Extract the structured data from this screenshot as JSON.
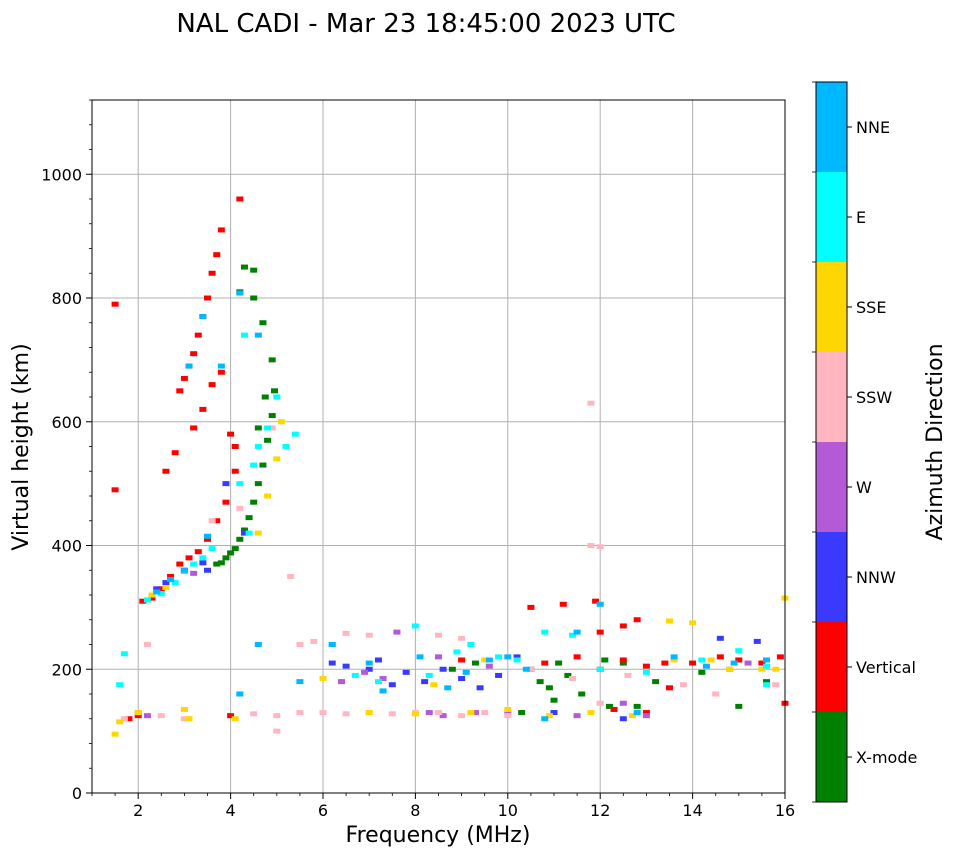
{
  "chart_data": {
    "type": "scatter",
    "title": "NAL CADI - Mar 23 18:45:00 2023 UTC",
    "xlabel": "Frequency (MHz)",
    "ylabel": "Virtual height (km)",
    "xlim": [
      1,
      16
    ],
    "ylim": [
      0,
      1120
    ],
    "xticks": [
      2,
      4,
      6,
      8,
      10,
      12,
      14,
      16
    ],
    "yticks": [
      0,
      200,
      400,
      600,
      800,
      1000
    ],
    "grid": true,
    "colorbar": {
      "label": "Azimuth Direction",
      "position": "right",
      "categories": [
        {
          "name": "X-mode",
          "color": "#008000"
        },
        {
          "name": "Vertical",
          "color": "#ff0000"
        },
        {
          "name": "NNW",
          "color": "#3a3aff"
        },
        {
          "name": "W",
          "color": "#b45ad6"
        },
        {
          "name": "SSW",
          "color": "#ffb6c1"
        },
        {
          "name": "SSE",
          "color": "#ffd700"
        },
        {
          "name": "E",
          "color": "#00ffff"
        },
        {
          "name": "NNE",
          "color": "#00b8ff"
        }
      ]
    },
    "series": [
      {
        "name": "X-mode",
        "points": [
          [
            3.7,
            370
          ],
          [
            3.8,
            372
          ],
          [
            3.9,
            380
          ],
          [
            4.0,
            388
          ],
          [
            4.1,
            395
          ],
          [
            4.2,
            410
          ],
          [
            4.3,
            425
          ],
          [
            4.4,
            445
          ],
          [
            4.5,
            470
          ],
          [
            4.6,
            500
          ],
          [
            4.7,
            530
          ],
          [
            4.8,
            570
          ],
          [
            4.9,
            610
          ],
          [
            4.95,
            650
          ],
          [
            4.9,
            700
          ],
          [
            4.7,
            760
          ],
          [
            4.5,
            800
          ],
          [
            4.2,
            810
          ],
          [
            4.5,
            845
          ],
          [
            4.3,
            850
          ],
          [
            4.6,
            590
          ],
          [
            4.75,
            640
          ],
          [
            10.5,
            200
          ],
          [
            10.7,
            180
          ],
          [
            10.9,
            170
          ],
          [
            11.1,
            210
          ],
          [
            11.3,
            190
          ],
          [
            11.6,
            160
          ],
          [
            12.2,
            140
          ],
          [
            12.5,
            210
          ],
          [
            12.8,
            140
          ],
          [
            13.2,
            180
          ],
          [
            14.2,
            195
          ],
          [
            15.0,
            140
          ],
          [
            15.6,
            180
          ],
          [
            10.3,
            130
          ],
          [
            11.0,
            150
          ],
          [
            12.1,
            215
          ],
          [
            9.3,
            210
          ],
          [
            8.8,
            200
          ]
        ]
      },
      {
        "name": "Vertical",
        "points": [
          [
            1.5,
            790
          ],
          [
            1.5,
            490
          ],
          [
            2.1,
            310
          ],
          [
            2.3,
            315
          ],
          [
            2.5,
            330
          ],
          [
            2.7,
            350
          ],
          [
            2.9,
            370
          ],
          [
            3.1,
            380
          ],
          [
            3.3,
            390
          ],
          [
            3.5,
            410
          ],
          [
            3.7,
            440
          ],
          [
            3.9,
            470
          ],
          [
            4.1,
            520
          ],
          [
            4.2,
            960
          ],
          [
            3.8,
            910
          ],
          [
            3.7,
            870
          ],
          [
            3.6,
            840
          ],
          [
            3.5,
            800
          ],
          [
            3.4,
            770
          ],
          [
            3.3,
            740
          ],
          [
            3.2,
            710
          ],
          [
            3.1,
            690
          ],
          [
            3.0,
            670
          ],
          [
            2.9,
            650
          ],
          [
            2.6,
            520
          ],
          [
            2.8,
            550
          ],
          [
            3.2,
            590
          ],
          [
            3.4,
            620
          ],
          [
            3.6,
            660
          ],
          [
            3.8,
            680
          ],
          [
            4.0,
            580
          ],
          [
            4.1,
            560
          ],
          [
            1.8,
            120
          ],
          [
            2.0,
            125
          ],
          [
            4.0,
            125
          ],
          [
            9.0,
            215
          ],
          [
            10.5,
            300
          ],
          [
            11.2,
            305
          ],
          [
            11.9,
            310
          ],
          [
            12.0,
            260
          ],
          [
            12.5,
            270
          ],
          [
            12.8,
            280
          ],
          [
            12.0,
            200
          ],
          [
            12.5,
            215
          ],
          [
            13.0,
            205
          ],
          [
            13.4,
            210
          ],
          [
            14.0,
            210
          ],
          [
            14.6,
            220
          ],
          [
            15.0,
            215
          ],
          [
            15.5,
            210
          ],
          [
            15.9,
            220
          ],
          [
            16.0,
            145
          ],
          [
            13.5,
            170
          ],
          [
            10.8,
            210
          ],
          [
            11.5,
            220
          ],
          [
            12.3,
            135
          ],
          [
            13.0,
            130
          ]
        ]
      },
      {
        "name": "NNW",
        "points": [
          [
            2.4,
            330
          ],
          [
            2.6,
            340
          ],
          [
            3.0,
            360
          ],
          [
            3.4,
            372
          ],
          [
            6.2,
            210
          ],
          [
            6.5,
            205
          ],
          [
            7.0,
            200
          ],
          [
            7.2,
            215
          ],
          [
            7.8,
            195
          ],
          [
            8.2,
            180
          ],
          [
            8.6,
            200
          ],
          [
            9.0,
            185
          ],
          [
            9.4,
            170
          ],
          [
            9.8,
            190
          ],
          [
            10.2,
            220
          ],
          [
            11.0,
            130
          ],
          [
            12.5,
            120
          ],
          [
            14.6,
            250
          ],
          [
            15.4,
            245
          ],
          [
            3.9,
            500
          ],
          [
            3.5,
            360
          ],
          [
            4.3,
            420
          ],
          [
            7.5,
            175
          ]
        ]
      },
      {
        "name": "W",
        "points": [
          [
            2.0,
            130
          ],
          [
            2.2,
            125
          ],
          [
            6.4,
            180
          ],
          [
            6.9,
            195
          ],
          [
            7.3,
            185
          ],
          [
            7.6,
            260
          ],
          [
            8.3,
            130
          ],
          [
            8.6,
            125
          ],
          [
            9.3,
            130
          ],
          [
            10.0,
            130
          ],
          [
            11.5,
            125
          ],
          [
            12.5,
            145
          ],
          [
            13.0,
            125
          ],
          [
            14.8,
            200
          ],
          [
            15.2,
            210
          ],
          [
            3.2,
            355
          ],
          [
            8.5,
            220
          ],
          [
            9.6,
            205
          ]
        ]
      },
      {
        "name": "SSW",
        "points": [
          [
            1.7,
            120
          ],
          [
            2.5,
            125
          ],
          [
            3.0,
            120
          ],
          [
            4.5,
            128
          ],
          [
            5.0,
            125
          ],
          [
            5.5,
            130
          ],
          [
            6.0,
            130
          ],
          [
            6.5,
            128
          ],
          [
            7.0,
            130
          ],
          [
            7.5,
            128
          ],
          [
            8.0,
            130
          ],
          [
            8.5,
            130
          ],
          [
            9.0,
            125
          ],
          [
            9.5,
            130
          ],
          [
            10.0,
            125
          ],
          [
            6.5,
            258
          ],
          [
            7.0,
            255
          ],
          [
            8.5,
            255
          ],
          [
            9.0,
            250
          ],
          [
            11.8,
            630
          ],
          [
            11.8,
            400
          ],
          [
            12.0,
            398
          ],
          [
            5.5,
            240
          ],
          [
            5.8,
            245
          ],
          [
            3.6,
            440
          ],
          [
            4.2,
            460
          ],
          [
            4.9,
            590
          ],
          [
            2.2,
            240
          ],
          [
            14.5,
            160
          ],
          [
            13.8,
            175
          ],
          [
            10.5,
            200
          ],
          [
            11.4,
            185
          ],
          [
            12.6,
            190
          ],
          [
            15.8,
            175
          ],
          [
            5.3,
            350
          ],
          [
            5.0,
            100
          ],
          [
            12.0,
            145
          ]
        ]
      },
      {
        "name": "SSE",
        "points": [
          [
            1.6,
            115
          ],
          [
            2.0,
            130
          ],
          [
            2.3,
            320
          ],
          [
            2.6,
            332
          ],
          [
            3.1,
            120
          ],
          [
            4.1,
            120
          ],
          [
            4.6,
            420
          ],
          [
            4.8,
            480
          ],
          [
            5.0,
            540
          ],
          [
            5.1,
            600
          ],
          [
            6.0,
            185
          ],
          [
            7.0,
            130
          ],
          [
            8.0,
            128
          ],
          [
            8.4,
            175
          ],
          [
            9.2,
            130
          ],
          [
            10.0,
            135
          ],
          [
            10.9,
            125
          ],
          [
            11.8,
            130
          ],
          [
            12.7,
            125
          ],
          [
            13.6,
            215
          ],
          [
            14.0,
            275
          ],
          [
            14.4,
            215
          ],
          [
            14.8,
            200
          ],
          [
            15.5,
            200
          ],
          [
            16.0,
            315
          ],
          [
            13.5,
            278
          ],
          [
            15.8,
            200
          ],
          [
            1.5,
            95
          ],
          [
            3.0,
            135
          ],
          [
            9.5,
            215
          ]
        ]
      },
      {
        "name": "E",
        "points": [
          [
            1.6,
            175
          ],
          [
            1.7,
            225
          ],
          [
            2.2,
            312
          ],
          [
            2.5,
            322
          ],
          [
            2.8,
            340
          ],
          [
            3.0,
            358
          ],
          [
            3.2,
            370
          ],
          [
            3.4,
            380
          ],
          [
            3.6,
            395
          ],
          [
            4.2,
            500
          ],
          [
            4.4,
            420
          ],
          [
            4.6,
            560
          ],
          [
            4.8,
            590
          ],
          [
            5.0,
            640
          ],
          [
            5.2,
            560
          ],
          [
            5.4,
            580
          ],
          [
            4.5,
            530
          ],
          [
            4.3,
            740
          ],
          [
            8.0,
            270
          ],
          [
            6.2,
            240
          ],
          [
            6.7,
            190
          ],
          [
            7.2,
            180
          ],
          [
            8.3,
            190
          ],
          [
            9.2,
            240
          ],
          [
            9.8,
            220
          ],
          [
            10.2,
            215
          ],
          [
            10.8,
            260
          ],
          [
            11.4,
            255
          ],
          [
            12.0,
            200
          ],
          [
            13.0,
            195
          ],
          [
            14.2,
            215
          ],
          [
            15.0,
            230
          ],
          [
            15.6,
            205
          ],
          [
            15.6,
            175
          ],
          [
            8.9,
            228
          ]
        ]
      },
      {
        "name": "NNE",
        "points": [
          [
            2.4,
            325
          ],
          [
            2.7,
            345
          ],
          [
            3.0,
            360
          ],
          [
            3.5,
            415
          ],
          [
            3.4,
            770
          ],
          [
            3.1,
            690
          ],
          [
            3.8,
            690
          ],
          [
            4.6,
            740
          ],
          [
            4.2,
            808
          ],
          [
            4.2,
            160
          ],
          [
            5.5,
            180
          ],
          [
            6.2,
            240
          ],
          [
            7.0,
            210
          ],
          [
            7.3,
            165
          ],
          [
            8.7,
            170
          ],
          [
            9.1,
            195
          ],
          [
            9.6,
            215
          ],
          [
            10.4,
            200
          ],
          [
            10.8,
            120
          ],
          [
            11.5,
            260
          ],
          [
            12.0,
            305
          ],
          [
            12.8,
            130
          ],
          [
            13.6,
            220
          ],
          [
            14.3,
            205
          ],
          [
            14.9,
            210
          ],
          [
            15.6,
            215
          ],
          [
            4.6,
            240
          ],
          [
            8.1,
            220
          ],
          [
            10.0,
            220
          ]
        ]
      }
    ]
  }
}
